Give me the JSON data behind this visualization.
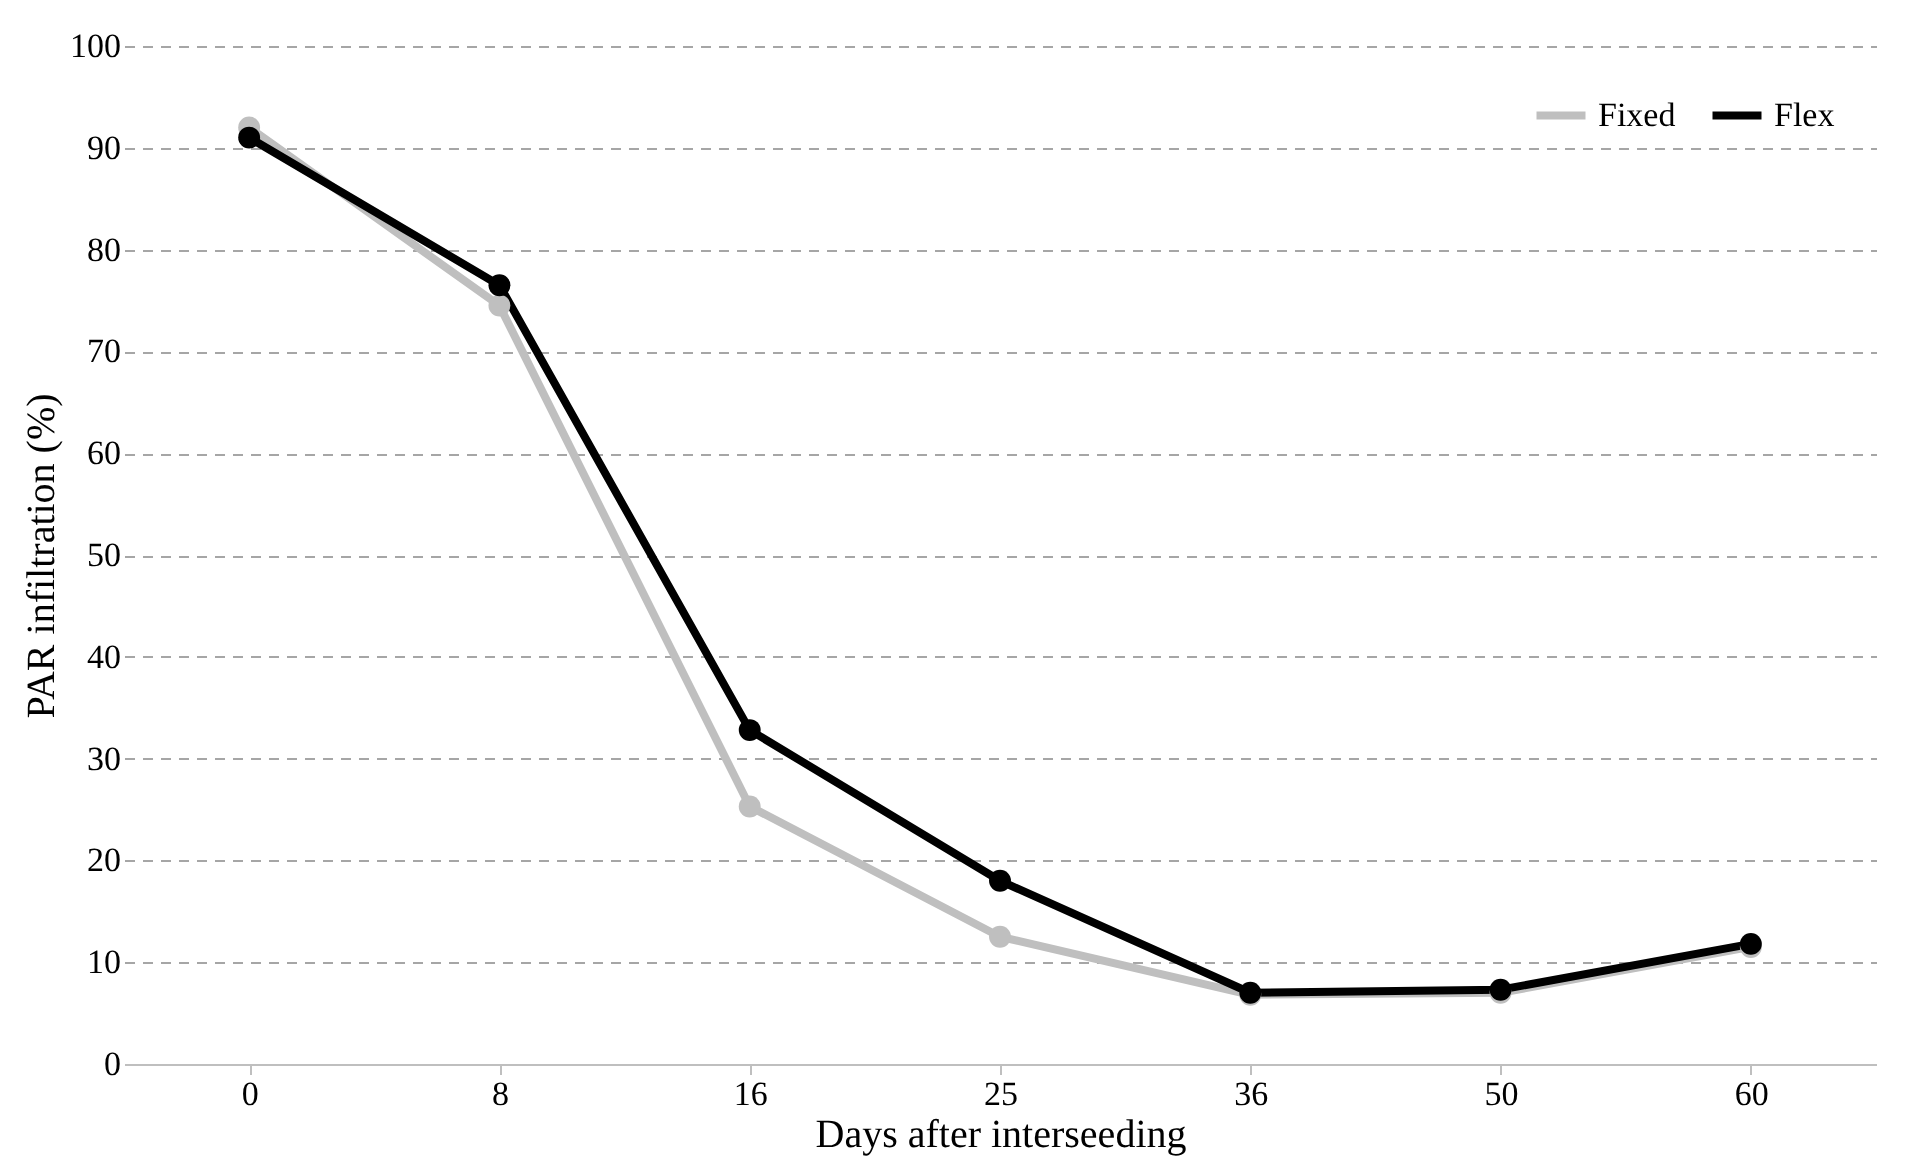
{
  "chart_data": {
    "type": "line",
    "xlabel": "Days after interseeding",
    "ylabel": "PAR infiltration (%)",
    "categories": [
      "0",
      "8",
      "16",
      "25",
      "36",
      "50",
      "60"
    ],
    "series": [
      {
        "name": "Fixed",
        "color": "#bfbfbf",
        "values": [
          92,
          74.5,
          25.3,
          12.5,
          6.8,
          7,
          11.5
        ]
      },
      {
        "name": "Flex",
        "color": "#000000",
        "values": [
          91,
          76.5,
          32.8,
          18,
          7,
          7.3,
          11.8
        ]
      }
    ],
    "ylim": [
      0,
      100
    ],
    "yticks": [
      0,
      10,
      20,
      30,
      40,
      50,
      60,
      70,
      80,
      90,
      100
    ],
    "grid": "y",
    "legend": "top right",
    "marker": "circle",
    "line_style": "solid"
  }
}
